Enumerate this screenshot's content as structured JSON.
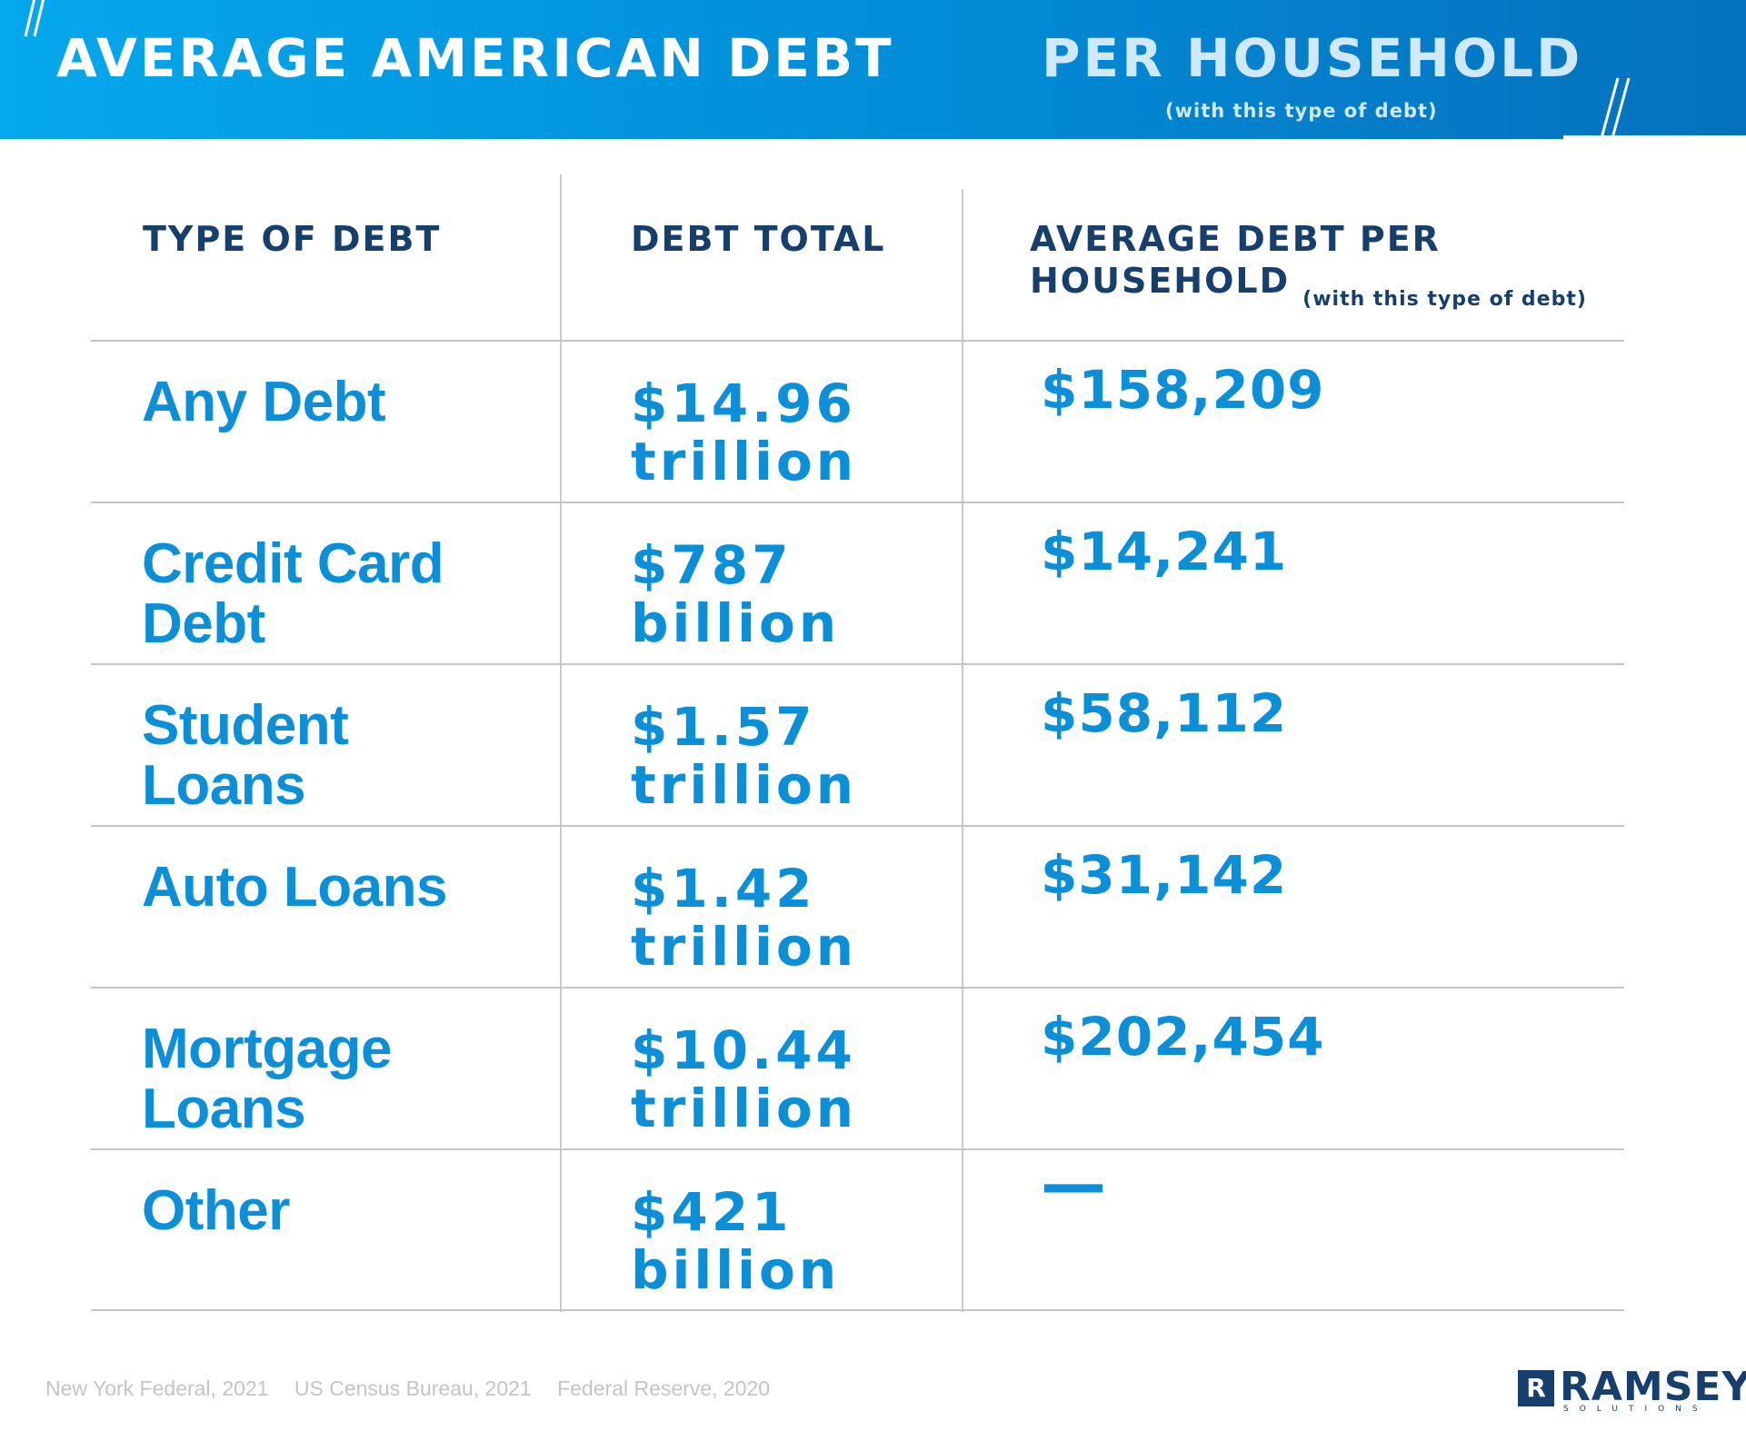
{
  "header": {
    "title": "AVERAGE AMERICAN DEBT",
    "subtitle": "PER HOUSEHOLD",
    "note": "(with this type of debt)",
    "colors": {
      "gradient_start": "#05a8ec",
      "gradient_end": "#0571bd",
      "title": "#ffffff",
      "subtitle": "#cfe9fa"
    }
  },
  "table": {
    "columns": {
      "type": "TYPE OF DEBT",
      "total": "DEBT TOTAL",
      "avg_line1": "AVERAGE DEBT PER",
      "avg_line2": "HOUSEHOLD",
      "avg_note": "(with this type of debt)"
    },
    "rows": [
      {
        "type": "Any Debt",
        "total_amount": "$14.96",
        "total_unit": "trillion",
        "avg": "$158,209"
      },
      {
        "type": "Credit Card Debt",
        "total_amount": "$787",
        "total_unit": "billion",
        "avg": "$14,241"
      },
      {
        "type": "Student Loans",
        "total_amount": "$1.57",
        "total_unit": "trillion",
        "avg": "$58,112"
      },
      {
        "type": "Auto Loans",
        "total_amount": "$1.42",
        "total_unit": "trillion",
        "avg": "$31,142"
      },
      {
        "type": "Mortgage Loans",
        "total_amount": "$10.44",
        "total_unit": "trillion",
        "avg": "$202,454"
      },
      {
        "type": "Other",
        "total_amount": "$421",
        "total_unit": "billion",
        "avg": "—"
      }
    ],
    "colors": {
      "header_text": "#173f6d",
      "value_text": "#0a8fd8",
      "rule": "#c4c4c4"
    }
  },
  "footer": {
    "sources": [
      "New York Federal, 2021",
      "US Census Bureau, 2021",
      "Federal Reserve, 2020"
    ],
    "logo": {
      "word": "RAMSEY",
      "sub": "SOLUTIONS",
      "mark": "R"
    }
  }
}
